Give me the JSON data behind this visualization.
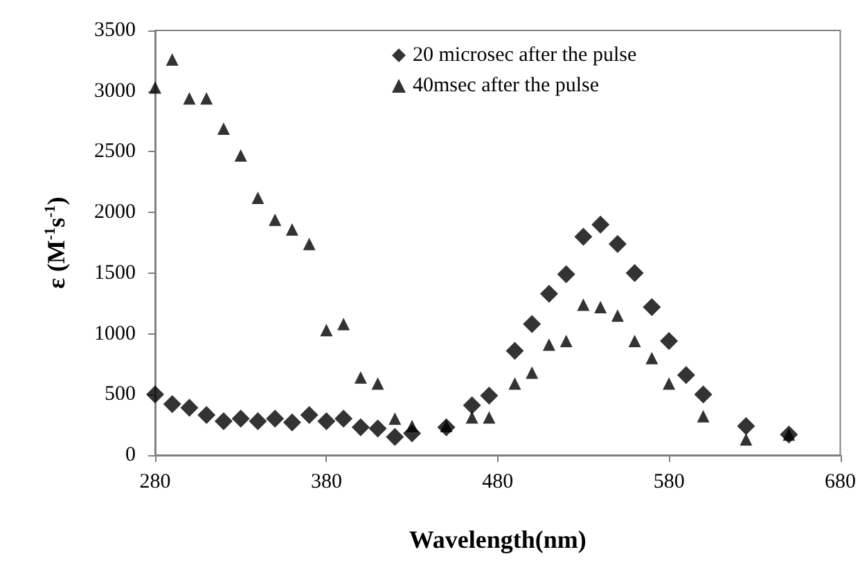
{
  "chart_data": {
    "type": "scatter",
    "xlabel": "Wavelength(nm)",
    "ylabel": "ε (M$^{-1}$s$^{-1}$)",
    "xlim": [
      280,
      680
    ],
    "xticks": [
      280,
      380,
      480,
      580,
      680
    ],
    "ylim": [
      0,
      3500
    ],
    "yticks": [
      0,
      500,
      1000,
      1500,
      2000,
      2500,
      3000,
      3500
    ],
    "grid": false,
    "legend": "top right",
    "series": [
      {
        "name": "20 microsec after the pulse",
        "color": "#000000",
        "marker": "diamond",
        "x": [
          280,
          290,
          300,
          310,
          320,
          330,
          340,
          350,
          360,
          370,
          380,
          390,
          400,
          410,
          420,
          430,
          450,
          465,
          475,
          490,
          500,
          510,
          520,
          530,
          540,
          550,
          560,
          570,
          580,
          590,
          600,
          625,
          650
        ],
        "values": [
          500,
          420,
          390,
          330,
          280,
          300,
          280,
          300,
          270,
          330,
          280,
          300,
          230,
          220,
          150,
          180,
          230,
          410,
          490,
          860,
          1080,
          1330,
          1490,
          1800,
          1900,
          1740,
          1500,
          1220,
          940,
          660,
          500,
          240,
          170
        ]
      },
      {
        "name": "40msec after the pulse",
        "color": "#000000",
        "marker": "triangle",
        "x": [
          280,
          290,
          300,
          310,
          320,
          330,
          340,
          350,
          360,
          370,
          380,
          390,
          400,
          410,
          420,
          430,
          450,
          465,
          475,
          490,
          500,
          510,
          520,
          530,
          540,
          550,
          560,
          570,
          580,
          600,
          625,
          650
        ],
        "values": [
          3030,
          3260,
          2940,
          2940,
          2690,
          2470,
          2120,
          1940,
          1860,
          1740,
          1030,
          1080,
          640,
          590,
          300,
          240,
          240,
          310,
          310,
          590,
          680,
          910,
          940,
          1240,
          1220,
          1150,
          940,
          800,
          590,
          320,
          130,
          170
        ]
      }
    ]
  }
}
